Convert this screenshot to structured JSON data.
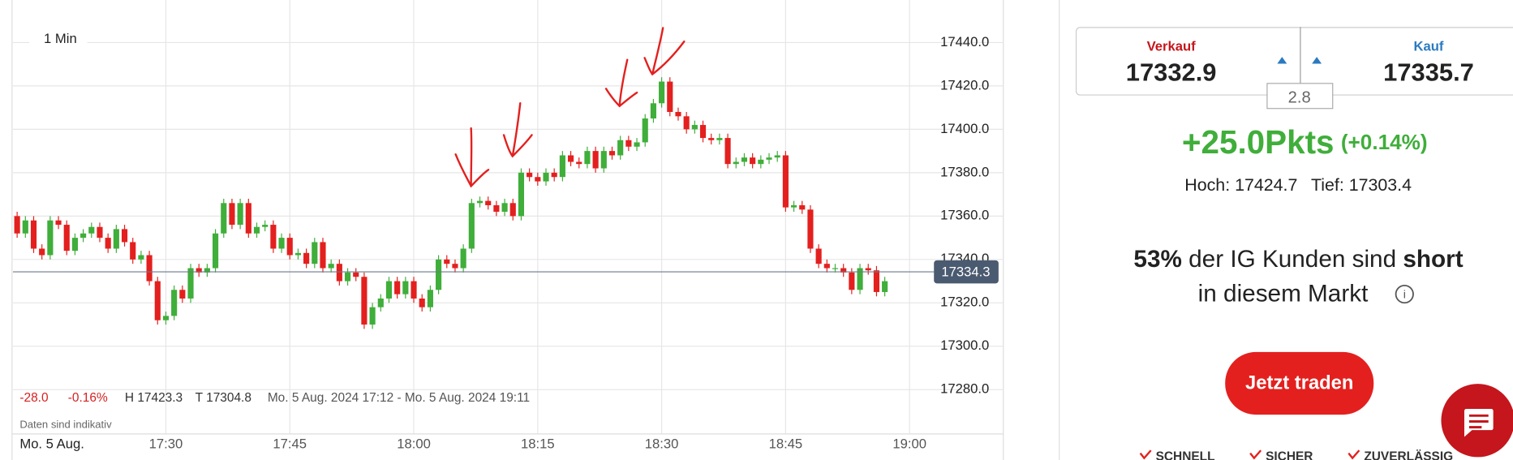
{
  "chart_data": {
    "type": "candlestick",
    "interval": "1 Min",
    "x": [
      1032,
      1033,
      1034,
      1035,
      1036,
      1037,
      1038,
      1039,
      1040,
      1041,
      1042,
      1043,
      1044,
      1045,
      1046,
      1047,
      1048,
      1049,
      1050,
      1051,
      1052,
      1053,
      1054,
      1055,
      1056,
      1057,
      1058,
      1059,
      1060,
      1061,
      1062,
      1063,
      1064,
      1065,
      1066,
      1067,
      1068,
      1069,
      1070,
      1071,
      1072,
      1073,
      1074,
      1075,
      1076,
      1077,
      1078,
      1079,
      1080,
      1081,
      1082,
      1083,
      1084,
      1085,
      1086,
      1087,
      1088,
      1089,
      1090,
      1091,
      1092,
      1093,
      1094,
      1095,
      1096,
      1097,
      1098,
      1099,
      1100,
      1101,
      1102,
      1103,
      1104,
      1105,
      1106,
      1107,
      1108,
      1109,
      1110,
      1111,
      1112,
      1113,
      1114,
      1115,
      1116,
      1117,
      1118,
      1119,
      1120,
      1121,
      1122,
      1123,
      1124,
      1125,
      1126,
      1127,
      1128,
      1129,
      1130,
      1131,
      1132,
      1133,
      1134,
      1135,
      1136,
      1137
    ],
    "open": [
      17360,
      17352,
      17358,
      17345,
      17342,
      17358,
      17356,
      17344,
      17350,
      17352,
      17355,
      17350,
      17345,
      17354,
      17348,
      17340,
      17342,
      17330,
      17312,
      17314,
      17326,
      17322,
      17336,
      17334,
      17336,
      17352,
      17366,
      17356,
      17366,
      17352,
      17355,
      17356,
      17345,
      17350,
      17342,
      17343,
      17338,
      17348,
      17336,
      17338,
      17330,
      17334,
      17332,
      17310,
      17318,
      17322,
      17330,
      17324,
      17330,
      17322,
      17318,
      17326,
      17340,
      17338,
      17336,
      17345,
      17366,
      17367,
      17365,
      17362,
      17366,
      17360,
      17380,
      17378,
      17376,
      17380,
      17378,
      17388,
      17385,
      17384,
      17390,
      17382,
      17390,
      17388,
      17395,
      17392,
      17394,
      17405,
      17412,
      17422,
      17408,
      17406,
      17400,
      17402,
      17396,
      17395,
      17396,
      17384,
      17385,
      17387,
      17384,
      17386,
      17387,
      17388,
      17364,
      17365,
      17363,
      17345,
      17338,
      17336,
      17336,
      17334,
      17326,
      17336,
      17335,
      17325
    ],
    "high": [
      17362,
      17360,
      17360,
      17347,
      17360,
      17360,
      17358,
      17352,
      17354,
      17357,
      17357,
      17352,
      17356,
      17356,
      17350,
      17344,
      17344,
      17332,
      17316,
      17328,
      17328,
      17338,
      17338,
      17338,
      17354,
      17368,
      17368,
      17368,
      17368,
      17357,
      17358,
      17358,
      17352,
      17352,
      17345,
      17345,
      17350,
      17350,
      17340,
      17340,
      17336,
      17336,
      17334,
      17320,
      17324,
      17332,
      17332,
      17332,
      17332,
      17324,
      17328,
      17342,
      17342,
      17340,
      17347,
      17368,
      17369,
      17369,
      17367,
      17368,
      17368,
      17382,
      17382,
      17380,
      17382,
      17382,
      17390,
      17390,
      17387,
      17392,
      17392,
      17392,
      17392,
      17397,
      17397,
      17396,
      17407,
      17414,
      17424,
      17424,
      17410,
      17408,
      17404,
      17404,
      17398,
      17398,
      17398,
      17387,
      17389,
      17389,
      17388,
      17389,
      17390,
      17390,
      17367,
      17367,
      17365,
      17347,
      17340,
      17338,
      17338,
      17336,
      17338,
      17338,
      17337,
      17332
    ],
    "low": [
      17350,
      17350,
      17343,
      17340,
      17340,
      17354,
      17342,
      17342,
      17348,
      17350,
      17348,
      17343,
      17343,
      17346,
      17338,
      17338,
      17328,
      17310,
      17310,
      17312,
      17320,
      17320,
      17332,
      17332,
      17334,
      17350,
      17354,
      17354,
      17350,
      17350,
      17353,
      17343,
      17343,
      17340,
      17340,
      17336,
      17336,
      17334,
      17334,
      17328,
      17328,
      17330,
      17308,
      17308,
      17316,
      17320,
      17322,
      17322,
      17320,
      17316,
      17316,
      17324,
      17336,
      17334,
      17334,
      17343,
      17364,
      17363,
      17360,
      17360,
      17358,
      17358,
      17376,
      17374,
      17374,
      17376,
      17376,
      17383,
      17382,
      17382,
      17380,
      17380,
      17386,
      17386,
      17390,
      17390,
      17392,
      17403,
      17410,
      17406,
      17404,
      17398,
      17398,
      17394,
      17393,
      17393,
      17382,
      17382,
      17383,
      17382,
      17382,
      17384,
      17385,
      17362,
      17362,
      17361,
      17343,
      17336,
      17334,
      17334,
      17332,
      17324,
      17324,
      17333,
      17323,
      17323
    ],
    "close": [
      17352,
      17358,
      17345,
      17342,
      17358,
      17356,
      17344,
      17350,
      17352,
      17355,
      17350,
      17345,
      17354,
      17348,
      17340,
      17342,
      17330,
      17312,
      17314,
      17326,
      17322,
      17336,
      17334,
      17336,
      17352,
      17366,
      17356,
      17366,
      17352,
      17355,
      17356,
      17345,
      17350,
      17342,
      17343,
      17338,
      17348,
      17336,
      17338,
      17330,
      17334,
      17332,
      17310,
      17318,
      17322,
      17330,
      17324,
      17330,
      17322,
      17318,
      17326,
      17340,
      17338,
      17336,
      17345,
      17366,
      17367,
      17365,
      17362,
      17366,
      17360,
      17380,
      17378,
      17376,
      17380,
      17378,
      17388,
      17385,
      17384,
      17390,
      17382,
      17390,
      17388,
      17395,
      17392,
      17394,
      17405,
      17412,
      17422,
      17408,
      17406,
      17400,
      17402,
      17396,
      17395,
      17396,
      17384,
      17385,
      17387,
      17384,
      17386,
      17387,
      17388,
      17364,
      17365,
      17363,
      17345,
      17338,
      17336,
      17336,
      17334,
      17326,
      17336,
      17335,
      17325,
      17330
    ],
    "up_color": "#3fae3a",
    "down_color": "#e3201e",
    "current": 17334.3,
    "xlim": [
      1031.5,
      1142.6
    ],
    "xticks": [
      {
        "value": 1050,
        "label": "17:30"
      },
      {
        "value": 1065,
        "label": "17:45"
      },
      {
        "value": 1080,
        "label": "18:00"
      },
      {
        "value": 1095,
        "label": "18:15"
      },
      {
        "value": 1110,
        "label": "18:30"
      },
      {
        "value": 1125,
        "label": "18:45"
      },
      {
        "value": 1140,
        "label": "19:00"
      }
    ],
    "ylim": [
      17261.8,
      17459.6
    ],
    "yticks": [
      {
        "value": 17280,
        "label": "17280.0"
      },
      {
        "value": 17300,
        "label": "17300.0"
      },
      {
        "value": 17320,
        "label": "17320.0"
      },
      {
        "value": 17340,
        "label": "17340.0"
      },
      {
        "value": 17360,
        "label": "17360.0"
      },
      {
        "value": 17380,
        "label": "17380.0"
      },
      {
        "value": 17400,
        "label": "17400.0"
      },
      {
        "value": 17420,
        "label": "17420.0"
      },
      {
        "value": 17440,
        "label": "17440.0"
      }
    ],
    "grid": true
  },
  "info": {
    "change": "-28.0",
    "change_pct": "-0.16%",
    "high": "H 17423.3",
    "low": "T 17304.8",
    "range": "Mo. 5 Aug. 2024 17:12 - Mo. 5 Aug. 2024 19:11",
    "note": "Daten sind indikativ",
    "date": "Mo. 5 Aug."
  },
  "panel": {
    "sell_label": "Verkauf",
    "sell": "17332.9",
    "buy_label": "Kauf",
    "buy": "17335.7",
    "spread": "2.8",
    "change": "+25.0Pkts",
    "change_pct": "(+0.14%)",
    "high": "Hoch: 17424.7",
    "low": "Tief: 17303.4",
    "sentiment_pct": "53%",
    "sentiment_text": "der IG Kunden sind",
    "sentiment_side": "short",
    "sentiment_line2": "in diesem Markt",
    "button": "Jetzt traden",
    "features": [
      "SCHNELL",
      "SICHER",
      "ZUVERLÄSSIG"
    ]
  }
}
